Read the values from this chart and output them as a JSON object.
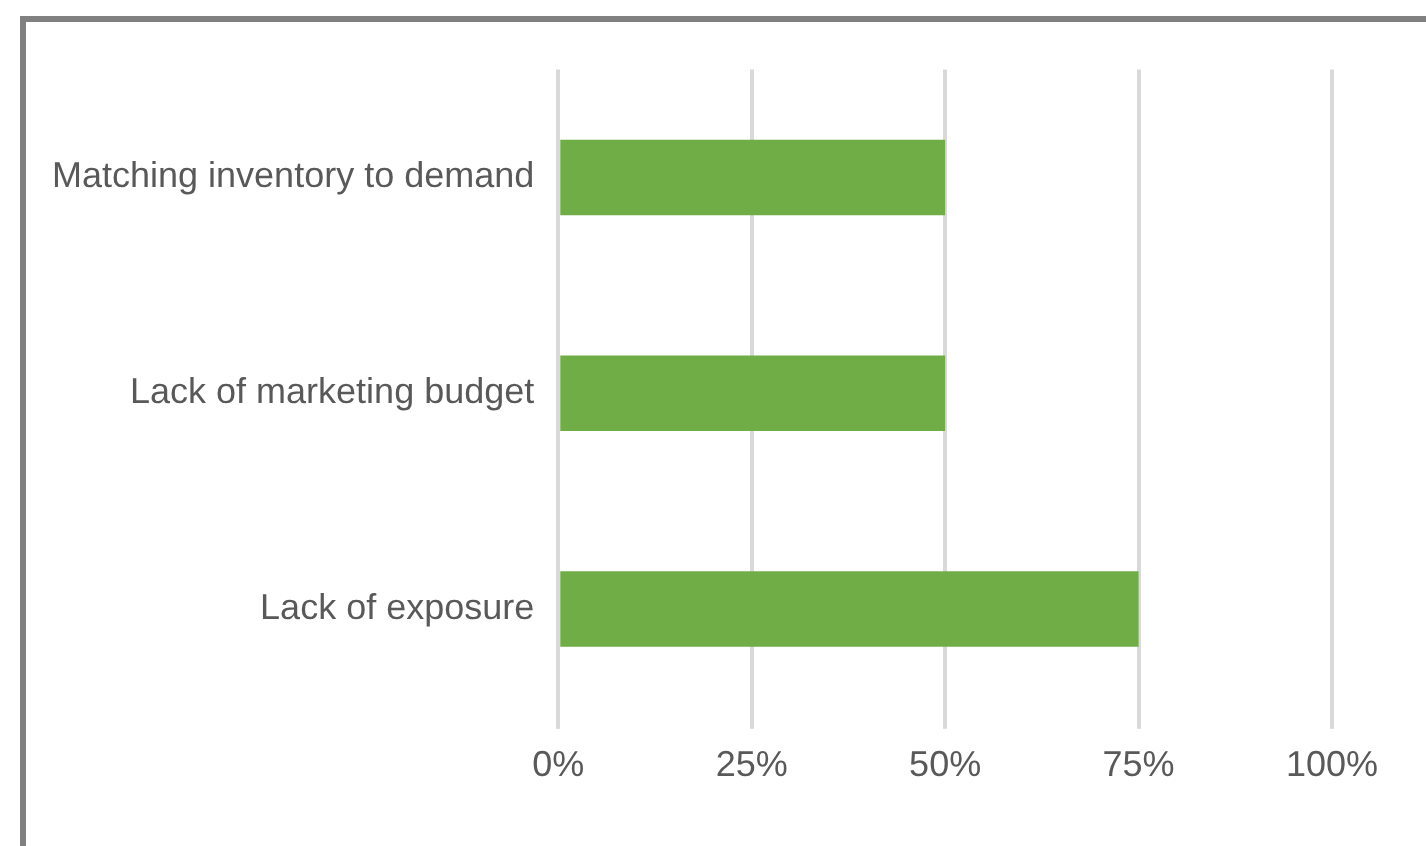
{
  "chart_data": {
    "type": "bar",
    "orientation": "horizontal",
    "categories": [
      "Matching inventory to demand",
      "Lack of marketing budget",
      "Lack of exposure"
    ],
    "values": [
      50,
      50,
      75
    ],
    "color": "#70ad47",
    "xlim": [
      0,
      100
    ],
    "xticks": [
      {
        "value": 0,
        "label": "0%"
      },
      {
        "value": 25,
        "label": "25%"
      },
      {
        "value": 50,
        "label": "50%"
      },
      {
        "value": 75,
        "label": "75%"
      },
      {
        "value": 100,
        "label": "100%"
      }
    ],
    "grid": "x",
    "legend": false
  }
}
